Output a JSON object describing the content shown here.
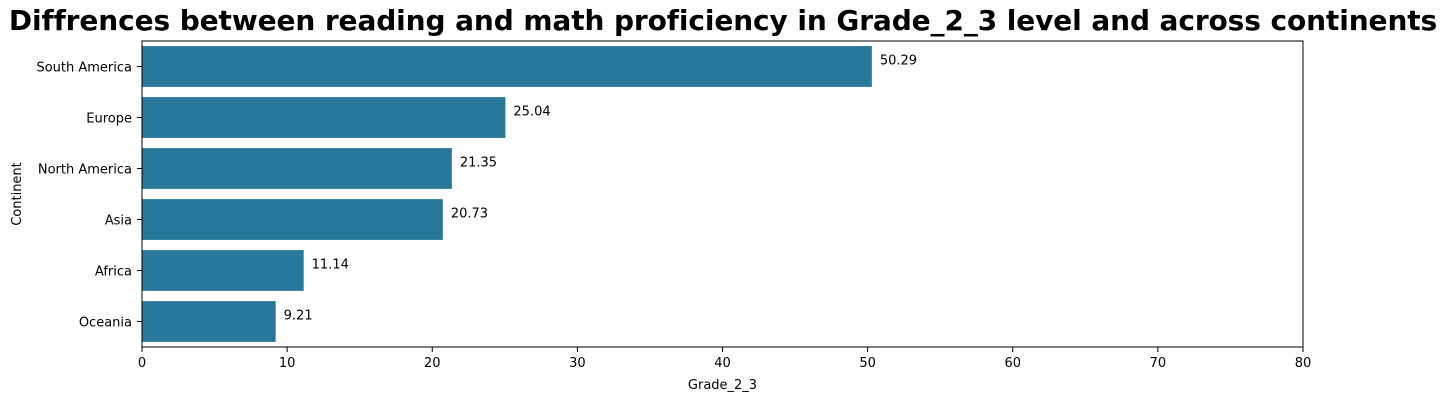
{
  "chart_data": {
    "type": "bar",
    "orientation": "horizontal",
    "title": "Diffrences between reading and math proficiency in Grade_2_3 level and across continents",
    "xlabel": "Grade_2_3",
    "ylabel": "Continent",
    "categories": [
      "South America",
      "Europe",
      "North America",
      "Asia",
      "Africa",
      "Oceania"
    ],
    "values": [
      50.29,
      25.04,
      21.35,
      20.73,
      11.14,
      9.21
    ],
    "data_labels": [
      "50.29",
      "25.04",
      "21.35",
      "20.73",
      "11.14",
      "9.21"
    ],
    "xlim": [
      0,
      80
    ],
    "xticks": [
      0,
      10,
      20,
      30,
      40,
      50,
      60,
      70,
      80
    ],
    "grid": false,
    "bar_color": "#2a7899"
  }
}
